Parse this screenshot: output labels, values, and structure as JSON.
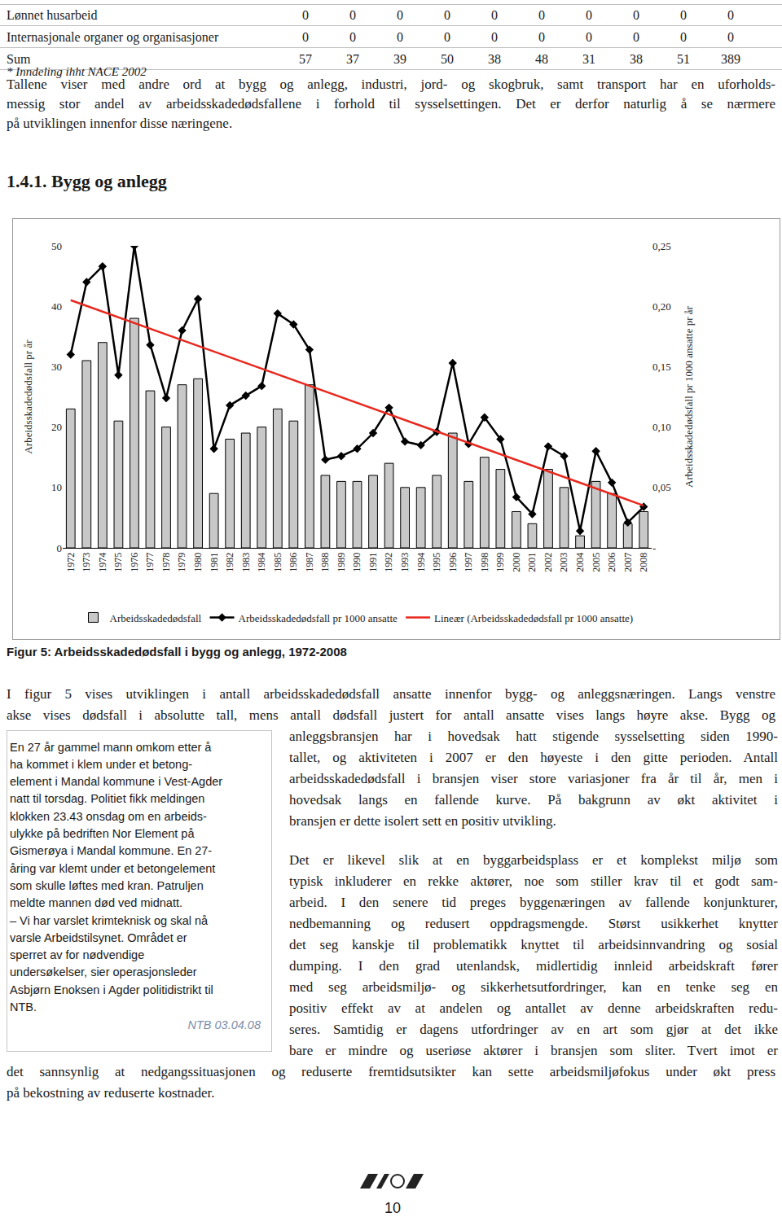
{
  "table": {
    "rows": [
      {
        "label": "Lønnet husarbeid",
        "values": [
          0,
          0,
          0,
          0,
          0,
          0,
          0,
          0,
          0,
          0
        ]
      },
      {
        "label": "Internasjonale organer og organisasjoner",
        "values": [
          0,
          0,
          0,
          0,
          0,
          0,
          0,
          0,
          0,
          0
        ]
      },
      {
        "label": "Sum",
        "values": [
          57,
          37,
          39,
          50,
          38,
          48,
          31,
          38,
          51,
          389
        ]
      }
    ],
    "footnote": "* Inndeling ihht NACE 2002"
  },
  "intro": [
    "Tallene viser med andre ord at bygg og anlegg, industri, jord- og skogbruk, samt transport har en uforholds-",
    "messig stor andel av arbeidsskadedødsfallene i forhold til sysselsettingen. Det er derfor naturlig å se nærmere",
    "på utviklingen innenfor disse næringene."
  ],
  "heading": "1.4.1. Bygg og anlegg",
  "chart_data": {
    "type": "bar",
    "x": [
      1972,
      1973,
      1974,
      1975,
      1976,
      1977,
      1978,
      1979,
      1980,
      1981,
      1982,
      1983,
      1984,
      1985,
      1986,
      1987,
      1988,
      1989,
      1990,
      1991,
      1992,
      1993,
      1994,
      1995,
      1996,
      1997,
      1998,
      1999,
      2000,
      2001,
      2002,
      2003,
      2004,
      2005,
      2006,
      2007,
      2008
    ],
    "series": [
      {
        "name": "Arbeidsskadedødsfall",
        "type": "bar",
        "color": "#c8c8c8",
        "values": [
          23,
          31,
          34,
          21,
          38,
          26,
          20,
          27,
          28,
          9,
          18,
          19,
          20,
          23,
          21,
          27,
          12,
          11,
          11,
          12,
          14,
          10,
          10,
          12,
          19,
          11,
          15,
          13,
          6,
          4,
          13,
          10,
          2,
          11,
          9,
          4,
          6
        ]
      },
      {
        "name": "Arbeidsskadedødsfall pr 1000 ansatte",
        "type": "line",
        "axis": "y2",
        "color": "#000000",
        "marker": "diamond",
        "line_style": "solid",
        "values": [
          0.16,
          0.22,
          0.233,
          0.143,
          0.25,
          0.168,
          0.124,
          0.18,
          0.206,
          0.082,
          0.118,
          0.126,
          0.134,
          0.194,
          0.185,
          0.164,
          0.073,
          0.076,
          0.082,
          0.095,
          0.116,
          0.088,
          0.085,
          0.096,
          0.153,
          0.086,
          0.108,
          0.09,
          0.042,
          0.028,
          0.084,
          0.076,
          0.014,
          0.08,
          0.054,
          0.021,
          0.034
        ]
      },
      {
        "name": "Lineær (Arbeidsskadedødsfall pr 1000 ansatte)",
        "type": "line",
        "axis": "y2",
        "color": "#e8281e",
        "line_style": "solid",
        "x": [
          1972,
          2008
        ],
        "values": [
          0.205,
          0.035
        ]
      }
    ],
    "ylabel": "Arbeidsskadedødsfall pr år",
    "y2label": "Arbeidsskadedødsfall pr 1000 ansatte pr år",
    "xlim": [
      1971.5,
      2008.5
    ],
    "xticks": [
      1972,
      1973,
      1974,
      1975,
      1976,
      1977,
      1978,
      1979,
      1980,
      1981,
      1982,
      1983,
      1984,
      1985,
      1986,
      1987,
      1988,
      1989,
      1990,
      1991,
      1992,
      1993,
      1994,
      1995,
      1996,
      1997,
      1998,
      1999,
      2000,
      2001,
      2002,
      2003,
      2004,
      2005,
      2006,
      2007,
      2008
    ],
    "ylim": [
      0,
      50
    ],
    "yticks": [
      0,
      10,
      20,
      30,
      40,
      50
    ],
    "y2lim": [
      0,
      0.25
    ],
    "y2ticks": [
      {
        "value": 0,
        "label": "-"
      },
      {
        "value": 0.05,
        "label": "0,05"
      },
      {
        "value": 0.1,
        "label": "0,10"
      },
      {
        "value": 0.15,
        "label": "0,15"
      },
      {
        "value": 0.2,
        "label": "0,20"
      },
      {
        "value": 0.25,
        "label": "0,25"
      }
    ],
    "legend": "bottom",
    "grid": false
  },
  "caption": "Figur 5: Arbeidsskadedødsfall i bygg og anlegg, 1972-2008",
  "body": [
    [
      "I figur 5 vises utviklingen i antall arbeidsskadedødsfall ansatte innenfor bygg- og anleggsnæringen. Langs venstre",
      "akse vises dødsfall i absolutte tall, mens antall dødsfall justert for antall ansatte vises langs høyre akse. Bygg og",
      "anleggsbransjen har i hovedsak hatt stigende sysselsetting siden 1990-",
      "tallet, og aktiviteten i 2007 er den høyeste i den gitte perioden. Antall",
      "arbeidsskadedødsfall i bransjen viser store variasjoner fra år til år, men i",
      "hovedsak langs en fallende kurve. På bakgrunn av økt aktivitet i",
      "bransjen er dette isolert sett en positiv utvikling."
    ],
    [
      "Det er likevel slik at en byggarbeidsplass er et komplekst miljø som",
      "typisk inkluderer en rekke aktører, noe som stiller krav til et godt sam-",
      "arbeid. I den senere tid preges byggenæringen av fallende konjunkturer,",
      "nedbemanning og redusert oppdragsmengde. Størst usikkerhet knytter",
      "det seg kanskje til problematikk knyttet til arbeidsinnvandring og sosial",
      "dumping. I den grad utenlandsk, midlertidig innleid arbeidskraft fører",
      "med seg arbeidsmiljø- og sikkerhetsutfordringer, kan en tenke seg en",
      "positiv effekt av at andelen og antallet av denne arbeidskraften redu-",
      "seres. Samtidig er dagens utfordringer av en art som gjør at det ikke",
      "bare er mindre og useriøse aktører i bransjen som sliter. Tvert imot er",
      "det sannsynlig at nedgangssituasjonen og reduserte fremtidsutsikter kan sette arbeidsmiljøfokus under økt press",
      "på bekostning av reduserte kostnader."
    ]
  ],
  "sidebar": {
    "lines": [
      "En 27 år gammel mann omkom etter å",
      "ha kommet i klem under et betong-",
      "element i Mandal kommune i Vest-Agder",
      "natt til torsdag. Politiet fikk meldingen",
      "klokken 23.43 onsdag om en arbeids-",
      "ulykke på bedriften Nor Element på",
      "Gismerøya i Mandal kommune. En 27-",
      "åring var klemt under et betongelement",
      "som skulle løftes med kran. Patruljen",
      "meldte mannen død ved midnatt.",
      "– Vi har varslet krimteknisk og skal nå",
      "varsle Arbeidstilsynet. Området er",
      "sperret av for nødvendige",
      "undersøkelser, sier operasjonsleder",
      "Asbjørn Enoksen i Agder politidistrikt til",
      "NTB."
    ],
    "source": "NTB 03.04.08"
  },
  "page_number": "10"
}
